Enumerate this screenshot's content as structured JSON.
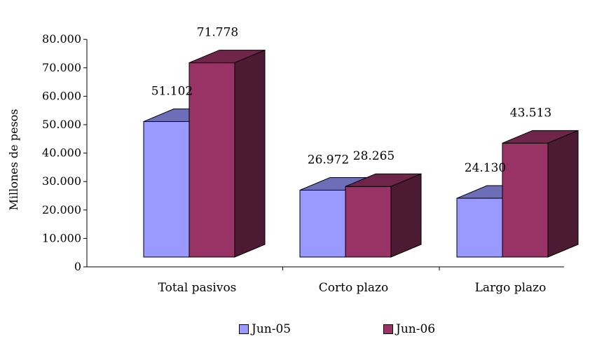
{
  "chart_data": {
    "type": "bar",
    "variant": "3d-clustered",
    "categories": [
      "Total pasivos",
      "Corto plazo",
      "Largo plazo"
    ],
    "series": [
      {
        "name": "Jun-05",
        "values": [
          51102,
          26972,
          24130
        ],
        "value_labels": [
          "51.102",
          "26.972",
          "24.130"
        ],
        "color": "#9999ff"
      },
      {
        "name": "Jun-06",
        "values": [
          71778,
          28265,
          43513
        ],
        "value_labels": [
          "71.778",
          "28.265",
          "43.513"
        ],
        "color": "#993366"
      }
    ],
    "ylabel": "Millones de pesos",
    "ylim": [
      0,
      80000
    ],
    "yticks": [
      0,
      10000,
      20000,
      30000,
      40000,
      50000,
      60000,
      70000,
      80000
    ],
    "ytick_labels": [
      "0",
      "10.000",
      "20.000",
      "30.000",
      "40.000",
      "50.000",
      "60.000",
      "70.000",
      "80.000"
    ],
    "grid": false,
    "legend_position": "bottom"
  }
}
